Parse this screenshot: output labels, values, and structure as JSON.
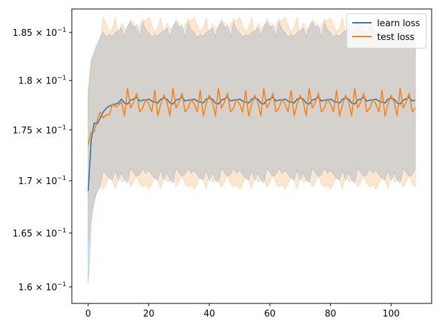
{
  "chart_data": {
    "type": "line",
    "title": "",
    "xlabel": "",
    "ylabel": "",
    "yscale": "log",
    "xlim": [
      -5.4,
      113.4
    ],
    "ylim": [
      0.1585,
      0.1875
    ],
    "xticks": [
      0,
      20,
      40,
      60,
      80,
      100
    ],
    "xtick_labels": [
      "0",
      "20",
      "40",
      "60",
      "80",
      "100"
    ],
    "yticks": [
      0.16,
      0.165,
      0.17,
      0.175,
      0.18,
      0.185
    ],
    "ytick_labels": [
      {
        "mantissa": "1.6",
        "base": "10",
        "exp": "−1"
      },
      {
        "mantissa": "1.65",
        "base": "10",
        "exp": "−1"
      },
      {
        "mantissa": "1.7",
        "base": "10",
        "exp": "−1"
      },
      {
        "mantissa": "1.75",
        "base": "10",
        "exp": "−1"
      },
      {
        "mantissa": "1.8",
        "base": "10",
        "exp": "−1"
      },
      {
        "mantissa": "1.85",
        "base": "10",
        "exp": "−1"
      }
    ],
    "grid": false,
    "legend_position": "top-right",
    "series": [
      {
        "name": "learn loss",
        "color": "#1f77b4",
        "band_color": "#1f8ff2",
        "band_opacity": 0.25,
        "band_upper_pattern": [
          0.1855,
          0.1848,
          0.1861,
          0.1852,
          0.1845,
          0.1857,
          0.185,
          0.1858,
          0.1846,
          0.1853
        ],
        "band_lower_pattern": [
          0.1708,
          0.1702,
          0.1712,
          0.17,
          0.1706,
          0.1698,
          0.171,
          0.1704,
          0.1701,
          0.1707
        ],
        "band_start_upper": [
          0.1785,
          0.182,
          0.183,
          0.1838,
          0.1845
        ],
        "band_start_lower": [
          0.1603,
          0.166,
          0.168,
          0.169,
          0.1695
        ],
        "mean_start": [
          0.169,
          0.174,
          0.1757,
          0.1756,
          0.1762,
          0.1768,
          0.1772,
          0.1774,
          0.1775,
          0.1776,
          0.1777
        ],
        "mean_pattern": [
          0.1781,
          0.1778,
          0.178,
          0.1782,
          0.1779,
          0.1776,
          0.1781,
          0.1783,
          0.1777,
          0.178
        ],
        "n_points": 109
      },
      {
        "name": "test loss",
        "color": "#ff7f0e",
        "band_color": "#ff9f40",
        "band_opacity": 0.25,
        "band_upper_pattern": [
          0.186,
          0.185,
          0.1864,
          0.1845,
          0.1858,
          0.1852,
          0.1866,
          0.1849,
          0.1855,
          0.1862
        ],
        "band_lower_pattern": [
          0.1699,
          0.1705,
          0.1694,
          0.1708,
          0.1697,
          0.1703,
          0.1692,
          0.1706,
          0.17,
          0.1696
        ],
        "band_start_upper": [
          0.179,
          0.1822,
          0.1826,
          0.1835,
          0.1842
        ],
        "band_start_lower": [
          0.164,
          0.167,
          0.1682,
          0.169,
          0.1694
        ],
        "mean_start": [
          0.1735,
          0.1748,
          0.1748,
          0.176,
          0.1768,
          0.1762,
          0.1765,
          0.1765,
          0.1776,
          0.1773,
          0.1775
        ],
        "mean_pattern": [
          0.1778,
          0.179,
          0.1772,
          0.1785,
          0.1768,
          0.1792,
          0.1776,
          0.1787,
          0.1764,
          0.1781
        ],
        "n_points": 109
      }
    ]
  }
}
